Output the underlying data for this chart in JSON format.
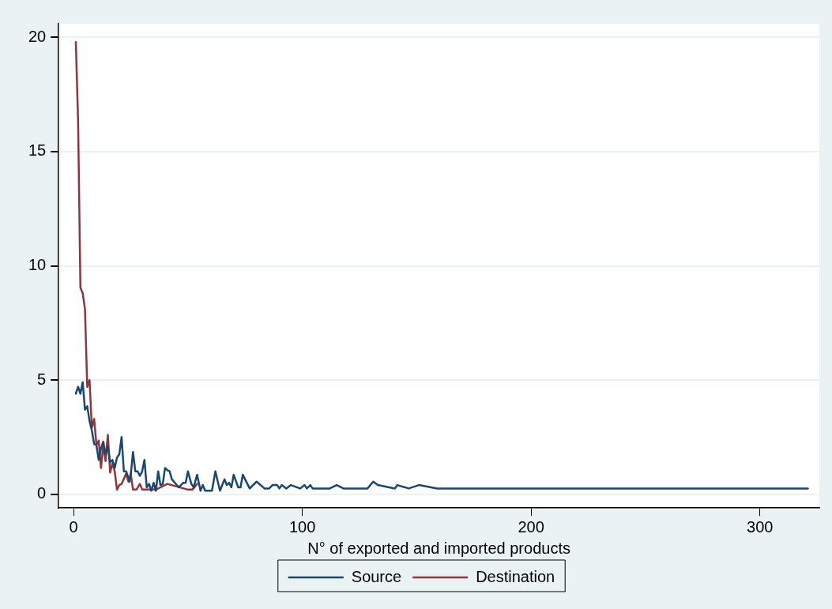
{
  "chart_data": {
    "type": "line",
    "xlabel": "N° of exported and imported products",
    "xlim": [
      -6.5,
      326
    ],
    "xticks": [
      0,
      100,
      200,
      300
    ],
    "ylim": [
      -0.6,
      20.6
    ],
    "yticks": [
      0,
      5,
      10,
      15,
      20
    ],
    "grid": "y",
    "legend": "bottom",
    "marker": "none",
    "line_style": "solid",
    "series": [
      {
        "name": "Source",
        "color": "#1a476f",
        "x": [
          1,
          2,
          3,
          4,
          5,
          6,
          7,
          8,
          9,
          10,
          11,
          12,
          13,
          14,
          15,
          16,
          17,
          18,
          19,
          20,
          21,
          22,
          23,
          24.5,
          25,
          26,
          27,
          28,
          29,
          30,
          31,
          32,
          33,
          34,
          35,
          36,
          37,
          38,
          39,
          40,
          41,
          42,
          43,
          46,
          48,
          49,
          50,
          51.5,
          52.5,
          54,
          55.5,
          56.5,
          57.5,
          60.5,
          62,
          64,
          66,
          67,
          68,
          69,
          70,
          72,
          73,
          74,
          77,
          80,
          83.5,
          85.5,
          87,
          89,
          90,
          91,
          93,
          95,
          99,
          101,
          102,
          103.5,
          104.5,
          112,
          115,
          118,
          128.5,
          131,
          133,
          140.5,
          141.5,
          146.5,
          151,
          159,
          321
        ],
        "values": [
          4.4,
          4.7,
          4.4,
          4.9,
          3.7,
          3.85,
          3.2,
          2.8,
          2.2,
          2.15,
          1.5,
          2.0,
          2.3,
          1.75,
          2.1,
          1.4,
          1.5,
          1.15,
          1.6,
          1.75,
          2.5,
          1.0,
          1.0,
          0.55,
          0.85,
          1.85,
          1.0,
          1.0,
          0.8,
          1.0,
          1.5,
          0.3,
          0.45,
          0.15,
          0.5,
          0.15,
          1.0,
          0.4,
          0.45,
          1.15,
          1.05,
          1.0,
          0.65,
          0.3,
          0.5,
          0.5,
          1.0,
          0.45,
          0.3,
          0.85,
          0.15,
          0.4,
          0.15,
          0.15,
          1.0,
          0.15,
          0.65,
          0.4,
          0.5,
          0.3,
          0.85,
          0.3,
          0.3,
          0.85,
          0.25,
          0.55,
          0.25,
          0.25,
          0.4,
          0.4,
          0.25,
          0.4,
          0.25,
          0.4,
          0.25,
          0.4,
          0.25,
          0.4,
          0.25,
          0.25,
          0.4,
          0.25,
          0.25,
          0.55,
          0.4,
          0.25,
          0.4,
          0.25,
          0.4,
          0.25,
          0.25
        ]
      },
      {
        "name": "Destination",
        "color": "#90353b",
        "x": [
          1,
          2,
          3,
          4,
          5,
          6,
          7,
          8,
          9,
          10,
          11,
          12,
          13,
          14,
          15,
          16,
          17,
          18,
          19,
          20,
          21,
          23,
          24,
          25,
          26,
          27.5,
          29,
          30,
          36,
          41,
          50,
          52,
          54
        ],
        "values": [
          19.8,
          16.3,
          9.05,
          8.8,
          8.1,
          4.7,
          5.0,
          2.9,
          3.3,
          2.15,
          2.35,
          1.15,
          2.15,
          1.45,
          2.6,
          0.95,
          1.35,
          1.0,
          0.2,
          0.4,
          0.45,
          0.9,
          0.55,
          0.9,
          0.2,
          0.2,
          0.45,
          0.2,
          0.2,
          0.45,
          0.2,
          0.2,
          0.45
        ]
      }
    ]
  }
}
